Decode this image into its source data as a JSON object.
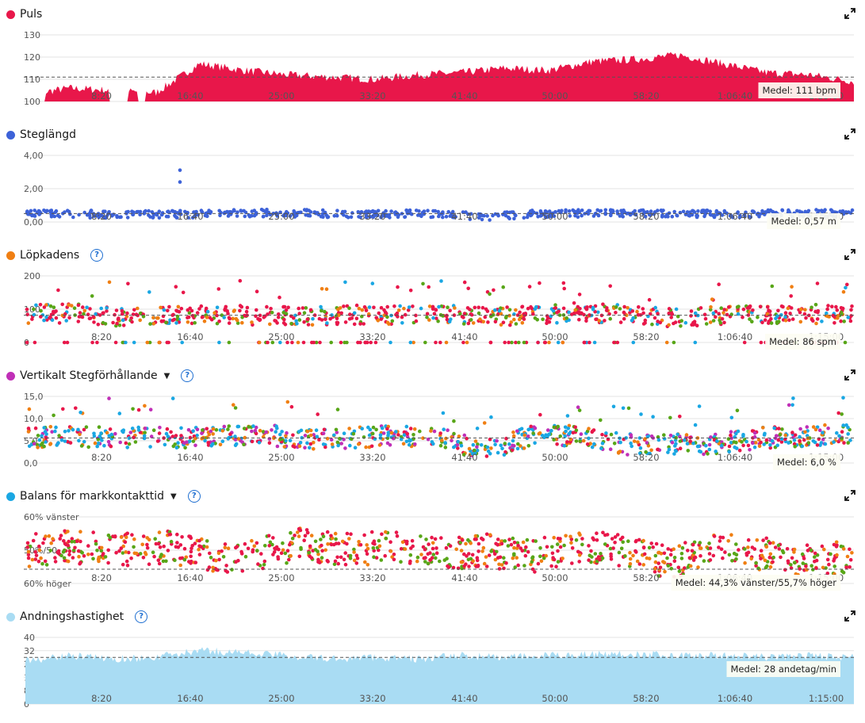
{
  "x_axis_ticks": [
    "8:20",
    "16:40",
    "25:00",
    "33:20",
    "41:40",
    "50:00",
    "58:20",
    "1:06:40",
    "1:15:00"
  ],
  "charts": [
    {
      "id": "puls",
      "title": "Puls",
      "color": "#e8174a",
      "help": false,
      "caret": false,
      "type": "area",
      "yticks": [
        "130",
        "120",
        "110",
        "100"
      ],
      "ylim": [
        100,
        130
      ],
      "average": "Medel: 111 bpm",
      "avg_value": 111
    },
    {
      "id": "steg",
      "title": "Steglängd",
      "color": "#3d62d8",
      "help": false,
      "caret": false,
      "type": "scatter",
      "yticks": [
        "4,00",
        "2,00",
        "0,00"
      ],
      "ylim": [
        0,
        4.5
      ],
      "average": "Medel: 0,57 m",
      "avg_value": 0.57
    },
    {
      "id": "kadens",
      "title": "Löpkadens",
      "color": "#f07f13",
      "help": true,
      "caret": false,
      "type": "scatter",
      "yticks": [
        "200",
        "100",
        "0"
      ],
      "ylim": [
        0,
        210
      ],
      "average": "Medel: 86 spm",
      "avg_value": 86
    },
    {
      "id": "vert",
      "title": "Vertikalt Stegförhållande",
      "color": "#c02fb7",
      "help": true,
      "caret": true,
      "type": "scatter",
      "yticks": [
        "15,0",
        "10,0",
        "5,0",
        "0,0"
      ],
      "ylim": [
        0,
        16
      ],
      "average": "Medel: 6,0 %",
      "avg_value": 6.0
    },
    {
      "id": "balans",
      "title": "Balans för markkontakttid",
      "color": "#1aa7e3",
      "help": true,
      "caret": true,
      "type": "scatter",
      "yticks": [
        "60% vänster",
        "50%/50",
        "60% höger"
      ],
      "ylim": [
        -10,
        10
      ],
      "average": "Medel: 44,3% vänster/55,7% höger",
      "avg_value": -5.7
    },
    {
      "id": "andning",
      "title": "Andningshastighet",
      "color": "#a9dcf3",
      "help": true,
      "caret": false,
      "type": "area",
      "yticks": [
        "40",
        "32",
        "24",
        "16",
        "8",
        "0"
      ],
      "ylim": [
        0,
        40
      ],
      "average": "Medel: 28 andetag/min",
      "avg_value": 28
    }
  ],
  "chart_data": [
    {
      "type": "area",
      "title": "Puls",
      "ylim": [
        100,
        130
      ],
      "yticks": [
        130,
        120,
        110,
        100
      ],
      "mean": 111,
      "x": [
        "0:00",
        "4:10",
        "8:20",
        "12:30",
        "16:40",
        "20:50",
        "25:00",
        "29:10",
        "33:20",
        "37:30",
        "41:40",
        "45:50",
        "50:00",
        "54:10",
        "58:20",
        "1:02:30",
        "1:06:40",
        "1:10:50",
        "1:15:00",
        "1:17:00"
      ],
      "values": [
        103,
        106,
        105,
        104,
        117,
        114,
        112,
        111,
        110,
        112,
        113,
        115,
        114,
        118,
        119,
        121,
        117,
        113,
        112,
        109
      ]
    },
    {
      "type": "scatter",
      "title": "Steglängd",
      "ylim": [
        0,
        4.5
      ],
      "yticks": [
        4,
        2,
        0
      ],
      "mean": 0.57,
      "x": [
        "0:00",
        "4:10",
        "8:20",
        "12:30",
        "16:40",
        "20:50",
        "25:00",
        "29:10",
        "33:20",
        "37:30",
        "41:40",
        "45:50",
        "50:00",
        "54:10",
        "58:20",
        "1:02:30",
        "1:06:40",
        "1:10:50",
        "1:15:00"
      ],
      "values": [
        0.6,
        0.55,
        0.5,
        0.52,
        0.55,
        0.6,
        0.58,
        0.55,
        0.54,
        0.57,
        0.35,
        0.55,
        0.58,
        0.57,
        0.56,
        0.56,
        0.55,
        0.6,
        0.55
      ]
    },
    {
      "type": "scatter",
      "title": "Löpkadens",
      "ylim": [
        0,
        210
      ],
      "yticks": [
        200,
        100,
        0
      ],
      "mean": 86,
      "x": [
        "0:00",
        "4:10",
        "8:20",
        "12:30",
        "16:40",
        "20:50",
        "25:00",
        "29:10",
        "33:20",
        "37:30",
        "41:40",
        "45:50",
        "50:00",
        "54:10",
        "58:20",
        "1:02:30",
        "1:06:40",
        "1:10:50",
        "1:15:00"
      ],
      "values": [
        88,
        92,
        80,
        84,
        90,
        85,
        82,
        88,
        86,
        94,
        82,
        86,
        96,
        88,
        80,
        84,
        85,
        90,
        88
      ]
    },
    {
      "type": "scatter",
      "title": "Vertikalt Stegförhållande",
      "ylim": [
        0,
        16
      ],
      "yticks": [
        15,
        10,
        5,
        0
      ],
      "mean": 6.0,
      "x": [
        "0:00",
        "4:10",
        "8:20",
        "12:30",
        "16:40",
        "20:50",
        "25:00",
        "29:10",
        "33:20",
        "37:30",
        "41:40",
        "45:50",
        "50:00",
        "54:10",
        "58:20",
        "1:02:30",
        "1:06:40",
        "1:10:50",
        "1:15:00"
      ],
      "values": [
        6,
        6.5,
        6,
        6.2,
        6,
        7,
        5.8,
        6,
        6.5,
        6,
        3,
        6.5,
        6.5,
        4.5,
        4.5,
        4.5,
        6,
        6.5,
        7
      ]
    },
    {
      "type": "scatter",
      "title": "Balans för markkontakttid",
      "ylim": [
        -10,
        10
      ],
      "yticks": [
        "60% vänster",
        "50%/50",
        "60% höger"
      ],
      "mean": "44,3% vänster/55,7% höger",
      "x": [
        "0:00",
        "4:10",
        "8:20",
        "12:30",
        "16:40",
        "20:50",
        "25:00",
        "29:10",
        "33:20",
        "37:30",
        "41:40",
        "45:50",
        "50:00",
        "54:10",
        "58:20",
        "1:02:30",
        "1:06:40",
        "1:10:50",
        "1:15:00"
      ],
      "values": [
        0,
        1,
        0,
        1,
        -2,
        -1,
        2,
        0,
        1,
        -1,
        0,
        -2,
        1,
        0,
        -4,
        1,
        -1,
        -3,
        -2
      ]
    },
    {
      "type": "area",
      "title": "Andningshastighet",
      "ylim": [
        0,
        40
      ],
      "yticks": [
        40,
        32,
        24,
        16,
        8,
        0
      ],
      "mean": 28,
      "x": [
        "0:00",
        "4:10",
        "8:20",
        "12:30",
        "16:40",
        "20:50",
        "25:00",
        "29:10",
        "33:20",
        "37:30",
        "41:40",
        "45:50",
        "50:00",
        "54:10",
        "58:20",
        "1:02:30",
        "1:06:40",
        "1:10:50",
        "1:15:00",
        "1:17:00"
      ],
      "values": [
        26,
        29,
        27,
        28,
        32,
        31,
        29,
        27,
        28,
        27,
        29,
        28,
        29,
        30,
        30,
        29,
        29,
        28,
        29,
        28
      ]
    }
  ]
}
